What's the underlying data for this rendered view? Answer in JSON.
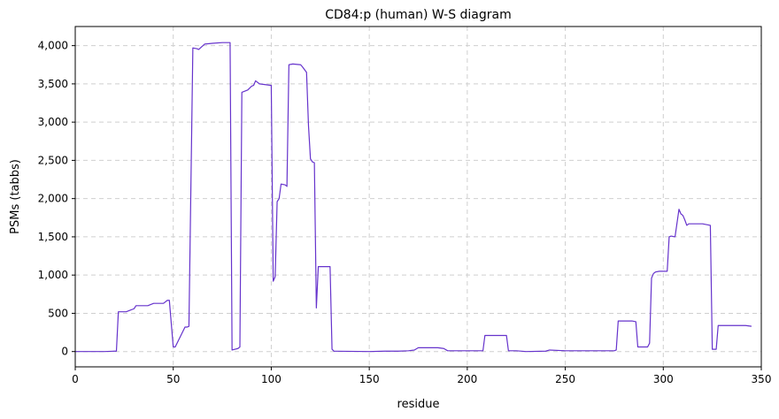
{
  "chart_data": {
    "type": "line",
    "title": "CD84:p (human) W-S diagram",
    "xlabel": "residue",
    "ylabel": "PSMs (tabbs)",
    "xlim": [
      0,
      350
    ],
    "ylim": [
      -200,
      4250
    ],
    "xticks": [
      0,
      50,
      100,
      150,
      200,
      250,
      300,
      350
    ],
    "xtick_labels": [
      "0",
      "50",
      "100",
      "150",
      "200",
      "250",
      "300",
      "350"
    ],
    "yticks": [
      0,
      500,
      1000,
      1500,
      2000,
      2500,
      3000,
      3500,
      4000
    ],
    "ytick_labels": [
      "0",
      "500",
      "1,000",
      "1,500",
      "2,000",
      "2,500",
      "3,000",
      "3,500",
      "4,000"
    ],
    "grid": true,
    "line_color": "#6633cc",
    "series": [
      {
        "x": [
          0,
          15,
          20,
          21,
          22,
          26,
          28,
          30,
          31,
          35,
          37,
          40,
          43,
          45,
          47,
          48,
          50,
          51,
          56,
          57,
          58,
          60,
          62,
          63,
          66,
          70,
          75,
          79,
          80,
          83,
          84,
          85,
          86,
          88,
          90,
          91,
          92,
          94,
          97,
          100,
          101,
          102,
          103,
          104,
          105,
          107,
          108,
          109,
          111,
          115,
          116,
          118,
          119,
          120,
          121,
          122,
          123,
          124,
          130,
          131,
          132,
          150,
          158,
          165,
          170,
          173,
          175,
          185,
          188,
          190,
          200,
          208,
          209,
          210,
          218,
          220,
          221,
          225,
          230,
          240,
          242,
          250,
          260,
          275,
          276,
          277,
          278,
          282,
          284,
          286,
          287,
          288,
          292,
          293,
          294,
          295,
          296,
          298,
          302,
          303,
          304,
          306,
          308,
          309,
          310,
          311,
          312,
          313,
          315,
          320,
          322,
          324,
          325,
          326,
          327,
          328,
          330,
          335,
          342,
          345
        ],
        "y": [
          0,
          0,
          5,
          5,
          520,
          520,
          540,
          560,
          600,
          600,
          600,
          630,
          630,
          630,
          670,
          670,
          60,
          60,
          320,
          320,
          330,
          3970,
          3960,
          3950,
          4020,
          4030,
          4040,
          4040,
          20,
          40,
          60,
          3390,
          3400,
          3420,
          3470,
          3480,
          3540,
          3500,
          3490,
          3480,
          920,
          980,
          1960,
          2000,
          2190,
          2180,
          2160,
          3750,
          3760,
          3750,
          3720,
          3650,
          2950,
          2520,
          2480,
          2470,
          570,
          1110,
          1110,
          30,
          5,
          0,
          5,
          5,
          10,
          20,
          50,
          50,
          40,
          10,
          10,
          10,
          210,
          210,
          210,
          210,
          10,
          10,
          0,
          5,
          20,
          10,
          10,
          10,
          20,
          400,
          400,
          400,
          400,
          390,
          60,
          60,
          60,
          110,
          960,
          1020,
          1040,
          1050,
          1050,
          1500,
          1510,
          1500,
          1860,
          1800,
          1780,
          1720,
          1650,
          1670,
          1670,
          1670,
          1660,
          1650,
          30,
          30,
          30,
          340,
          340,
          340,
          340,
          330
        ]
      }
    ]
  }
}
